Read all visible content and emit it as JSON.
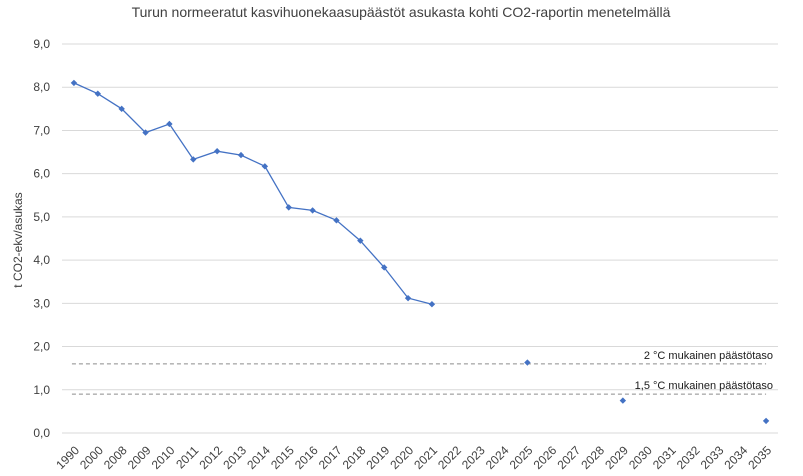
{
  "chart_data": {
    "type": "line",
    "title": "Turun normeeratut kasvihuonekaasupäästöt asukasta kohti CO2-raportin menetelmällä",
    "ylabel": "t CO2-ekv/asukas",
    "xlabel": "",
    "ylim": [
      0,
      9
    ],
    "yticks": [
      "0,0",
      "1,0",
      "2,0",
      "3,0",
      "4,0",
      "5,0",
      "6,0",
      "7,0",
      "8,0",
      "9,0"
    ],
    "grid": true,
    "categories": [
      "1990",
      "2000",
      "2008",
      "2009",
      "2010",
      "2011",
      "2012",
      "2013",
      "2014",
      "2015",
      "2016",
      "2017",
      "2018",
      "2019",
      "2020",
      "2021",
      "2022",
      "2023",
      "2024",
      "2025",
      "2026",
      "2027",
      "2028",
      "2029",
      "2030",
      "2031",
      "2032",
      "2033",
      "2034",
      "2035"
    ],
    "series": [
      {
        "values": [
          8.1,
          7.85,
          7.5,
          6.95,
          7.15,
          6.33,
          6.52,
          6.43,
          6.17,
          5.22,
          5.15,
          4.92,
          4.45,
          3.83,
          3.12,
          2.98,
          null,
          null,
          null,
          null,
          null,
          null,
          null,
          null,
          null,
          null,
          null,
          null,
          null,
          null
        ],
        "style": "line-with-markers"
      },
      {
        "values": [
          null,
          null,
          null,
          null,
          null,
          null,
          null,
          null,
          null,
          null,
          null,
          null,
          null,
          null,
          null,
          null,
          null,
          null,
          null,
          1.63,
          null,
          null,
          null,
          0.75,
          null,
          null,
          null,
          null,
          null,
          0.28
        ],
        "style": "markers-only"
      }
    ],
    "reference_lines": [
      {
        "label": "2 °C mukainen päästötaso",
        "value": 1.6
      },
      {
        "label": "1,5 °C mukainen päästötaso",
        "value": 0.9
      }
    ],
    "colors": {
      "series": "#4472c4",
      "reference": "#8c8c8c",
      "grid": "#d9d9d9"
    }
  }
}
